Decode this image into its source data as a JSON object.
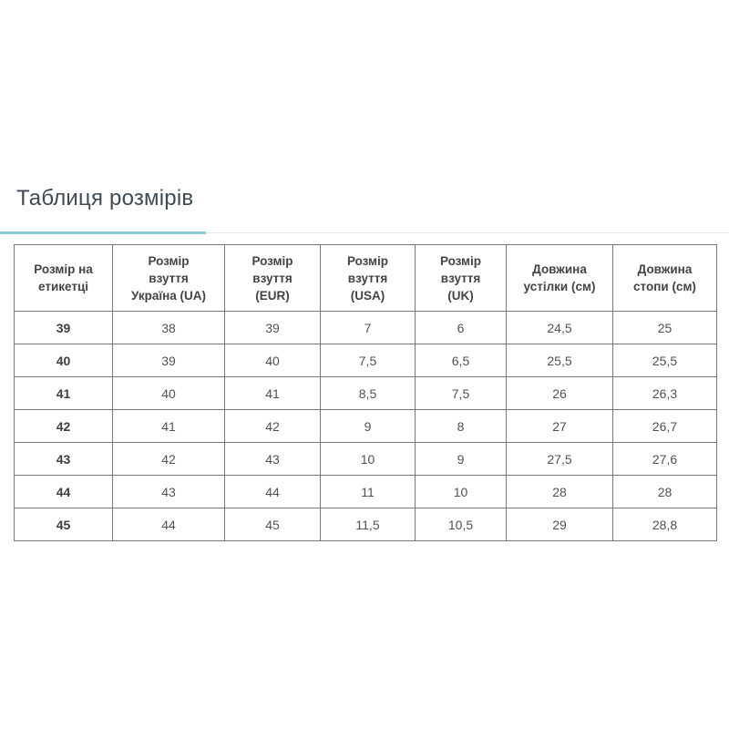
{
  "tab": {
    "label": "Таблиця розмірів"
  },
  "colors": {
    "accent_teal": "#8accd5",
    "divider_gray": "#e4e4e4",
    "table_border": "#787878",
    "title_text": "#3e4a54"
  },
  "size_table": {
    "headers": [
      "Розмір на\nетикетці",
      "Розмір\nвзуття\nУкраїна (UA)",
      "Розмір\nвзуття\n(EUR)",
      "Розмір\nвзуття\n(USA)",
      "Розмір\nвзуття\n(UK)",
      "Довжина\nустілки (см)",
      "Довжина\nстопи (см)"
    ],
    "rows": [
      [
        "39",
        "38",
        "39",
        "7",
        "6",
        "24,5",
        "25"
      ],
      [
        "40",
        "39",
        "40",
        "7,5",
        "6,5",
        "25,5",
        "25,5"
      ],
      [
        "41",
        "40",
        "41",
        "8,5",
        "7,5",
        "26",
        "26,3"
      ],
      [
        "42",
        "41",
        "42",
        "9",
        "8",
        "27",
        "26,7"
      ],
      [
        "43",
        "42",
        "43",
        "10",
        "9",
        "27,5",
        "27,6"
      ],
      [
        "44",
        "43",
        "44",
        "11",
        "10",
        "28",
        "28"
      ],
      [
        "45",
        "44",
        "45",
        "11,5",
        "10,5",
        "29",
        "28,8"
      ]
    ]
  }
}
